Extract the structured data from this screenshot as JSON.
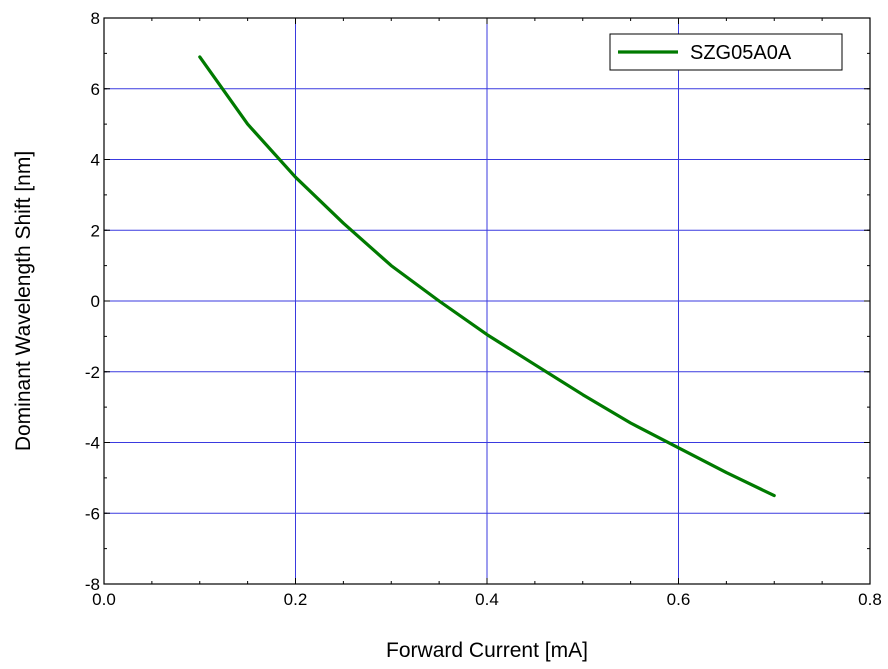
{
  "chart_data": {
    "type": "line",
    "xlabel": "Forward Current [mA]",
    "ylabel": "Dominant Wavelength Shift [nm]",
    "xlim": [
      0.0,
      0.8
    ],
    "ylim": [
      -8,
      8
    ],
    "x_ticks": [
      "0.0",
      "0.2",
      "0.4",
      "0.6",
      "0.8"
    ],
    "y_ticks": [
      "8",
      "6",
      "4",
      "2",
      "0",
      "-2",
      "-4",
      "-6",
      "-8"
    ],
    "grid": true,
    "legend_position": "top-right",
    "series": [
      {
        "name": "SZG05A0A",
        "color": "#007a00",
        "x": [
          0.1,
          0.15,
          0.2,
          0.25,
          0.3,
          0.35,
          0.4,
          0.45,
          0.5,
          0.55,
          0.6,
          0.65,
          0.7
        ],
        "y": [
          6.9,
          5.0,
          3.5,
          2.2,
          1.0,
          0.0,
          -0.95,
          -1.8,
          -2.65,
          -3.45,
          -4.15,
          -4.85,
          -5.5
        ]
      }
    ]
  },
  "colors": {
    "grid": "#3a3adf",
    "frame": "#000000"
  }
}
